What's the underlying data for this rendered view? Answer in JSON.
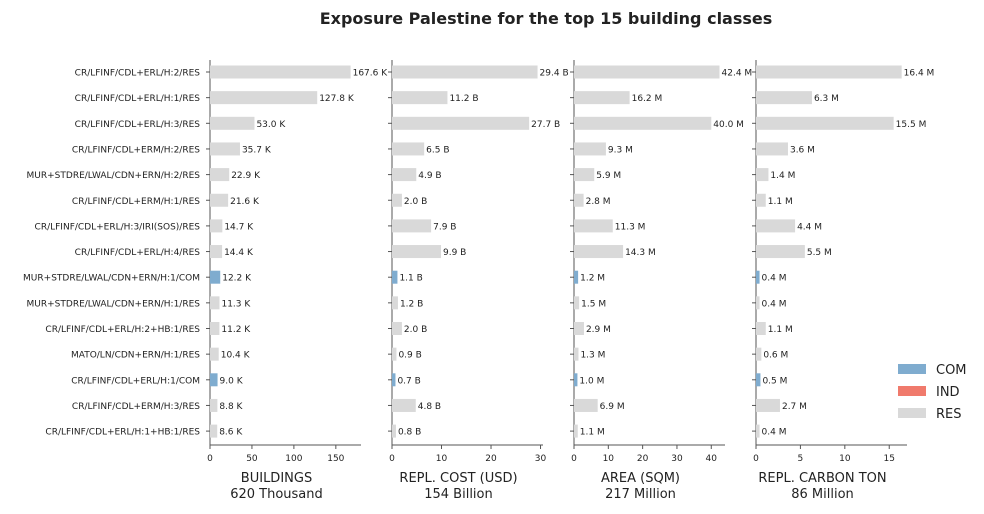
{
  "chart_data": {
    "type": "bar",
    "orientation": "horizontal",
    "title": "Exposure Palestine for the top 15 building classes",
    "categories": [
      "CR/LFINF/CDL+ERL/H:2/RES",
      "CR/LFINF/CDL+ERL/H:1/RES",
      "CR/LFINF/CDL+ERL/H:3/RES",
      "CR/LFINF/CDL+ERM/H:2/RES",
      "MUR+STDRE/LWAL/CDN+ERN/H:2/RES",
      "CR/LFINF/CDL+ERM/H:1/RES",
      "CR/LFINF/CDL+ERL/H:3/IRI(SOS)/RES",
      "CR/LFINF/CDL+ERL/H:4/RES",
      "MUR+STDRE/LWAL/CDN+ERN/H:1/COM",
      "MUR+STDRE/LWAL/CDN+ERN/H:1/RES",
      "CR/LFINF/CDL+ERL/H:2+HB:1/RES",
      "MATO/LN/CDN+ERN/H:1/RES",
      "CR/LFINF/CDL+ERL/H:1/COM",
      "CR/LFINF/CDL+ERM/H:3/RES",
      "CR/LFINF/CDL+ERL/H:1+HB:1/RES"
    ],
    "occupancy": [
      "RES",
      "RES",
      "RES",
      "RES",
      "RES",
      "RES",
      "RES",
      "RES",
      "COM",
      "RES",
      "RES",
      "RES",
      "COM",
      "RES",
      "RES"
    ],
    "legend": [
      {
        "label": "COM",
        "color": "#7faccf"
      },
      {
        "label": "IND",
        "color": "#f07a6c"
      },
      {
        "label": "RES",
        "color": "#d9d9d9"
      }
    ],
    "legend_position": "bottom-right",
    "grid": false,
    "panels": [
      {
        "xlabel": "BUILDINGS",
        "subtitle": "620 Thousand",
        "xlim": [
          0,
          180
        ],
        "ticks": [
          0,
          50,
          100,
          150
        ],
        "values": [
          167.6,
          127.8,
          53.0,
          35.7,
          22.9,
          21.6,
          14.7,
          14.4,
          12.2,
          11.3,
          11.2,
          10.4,
          9.0,
          8.8,
          8.6
        ],
        "labels": [
          "167.6 K",
          "127.8 K",
          "53.0 K",
          "35.7 K",
          "22.9 K",
          "21.6 K",
          "14.7 K",
          "14.4 K",
          "12.2 K",
          "11.3 K",
          "11.2 K",
          "10.4 K",
          "9.0 K",
          "8.8 K",
          "8.6 K"
        ]
      },
      {
        "xlabel": "REPL. COST (USD)",
        "subtitle": "154 Billion",
        "xlim": [
          0,
          30.5
        ],
        "ticks": [
          0,
          10,
          20,
          30
        ],
        "values": [
          29.4,
          11.2,
          27.7,
          6.5,
          4.9,
          2.0,
          7.9,
          9.9,
          1.1,
          1.2,
          2.0,
          0.9,
          0.7,
          4.8,
          0.8
        ],
        "labels": [
          "29.4 B",
          "11.2 B",
          "27.7 B",
          "6.5 B",
          "4.9 B",
          "2.0 B",
          "7.9 B",
          "9.9 B",
          "1.1 B",
          "1.2 B",
          "2.0 B",
          "0.9 B",
          "0.7 B",
          "4.8 B",
          "0.8 B"
        ]
      },
      {
        "xlabel": "AREA (SQM)",
        "subtitle": "217 Million",
        "xlim": [
          0,
          44
        ],
        "ticks": [
          0,
          10,
          20,
          30,
          40
        ],
        "values": [
          42.4,
          16.2,
          40.0,
          9.3,
          5.9,
          2.8,
          11.3,
          14.3,
          1.2,
          1.5,
          2.9,
          1.3,
          1.0,
          6.9,
          1.1
        ],
        "labels": [
          "42.4 M",
          "16.2 M",
          "40.0 M",
          "9.3 M",
          "5.9 M",
          "2.8 M",
          "11.3 M",
          "14.3 M",
          "1.2 M",
          "1.5 M",
          "2.9 M",
          "1.3 M",
          "1.0 M",
          "6.9 M",
          "1.1 M"
        ]
      },
      {
        "xlabel": "REPL. CARBON TON",
        "subtitle": "86 Million",
        "xlim": [
          0,
          17
        ],
        "ticks": [
          0,
          5,
          10,
          15
        ],
        "values": [
          16.4,
          6.3,
          15.5,
          3.6,
          1.4,
          1.1,
          4.4,
          5.5,
          0.4,
          0.4,
          1.1,
          0.6,
          0.5,
          2.7,
          0.4
        ],
        "labels": [
          "16.4 M",
          "6.3 M",
          "15.5 M",
          "3.6 M",
          "1.4 M",
          "1.1 M",
          "4.4 M",
          "5.5 M",
          "0.4 M",
          "0.4 M",
          "1.1 M",
          "0.6 M",
          "0.5 M",
          "2.7 M",
          "0.4 M"
        ]
      }
    ]
  }
}
